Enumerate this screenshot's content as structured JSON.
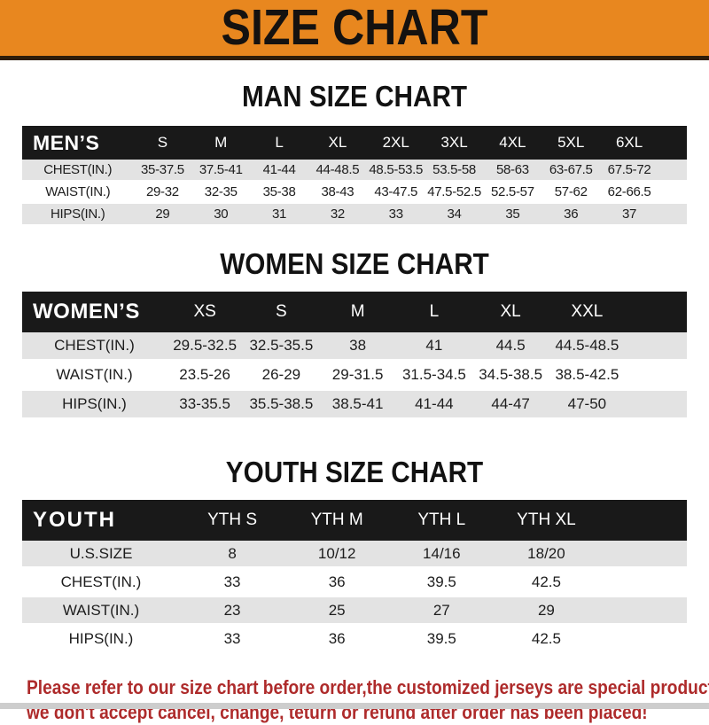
{
  "title": "SIZE CHART",
  "colors": {
    "accent_orange": "#E8871F",
    "header_bar_black": "#191919",
    "row_stripe_gray": "#E3E3E3",
    "note_red": "#AE2B2B"
  },
  "tables": {
    "men": {
      "heading": "MAN SIZE CHART",
      "header_label": "MEN’S",
      "columns": [
        "S",
        "M",
        "L",
        "XL",
        "2XL",
        "3XL",
        "4XL",
        "5XL",
        "6XL"
      ],
      "rows": [
        {
          "label": "CHEST(IN.)",
          "values": [
            "35-37.5",
            "37.5-41",
            "41-44",
            "44-48.5",
            "48.5-53.5",
            "53.5-58",
            "58-63",
            "63-67.5",
            "67.5-72"
          ]
        },
        {
          "label": "WAIST(IN.)",
          "values": [
            "29-32",
            "32-35",
            "35-38",
            "38-43",
            "43-47.5",
            "47.5-52.5",
            "52.5-57",
            "57-62",
            "62-66.5"
          ]
        },
        {
          "label": "HIPS(IN.)",
          "values": [
            "29",
            "30",
            "31",
            "32",
            "33",
            "34",
            "35",
            "36",
            "37"
          ]
        }
      ]
    },
    "women": {
      "heading": "WOMEN SIZE CHART",
      "header_label": "WOMEN’S",
      "columns": [
        "XS",
        "S",
        "M",
        "L",
        "XL",
        "XXL"
      ],
      "rows": [
        {
          "label": "CHEST(IN.)",
          "values": [
            "29.5-32.5",
            "32.5-35.5",
            "38",
            "41",
            "44.5",
            "44.5-48.5"
          ]
        },
        {
          "label": "WAIST(IN.)",
          "values": [
            "23.5-26",
            "26-29",
            "29-31.5",
            "31.5-34.5",
            "34.5-38.5",
            "38.5-42.5"
          ]
        },
        {
          "label": "HIPS(IN.)",
          "values": [
            "33-35.5",
            "35.5-38.5",
            "38.5-41",
            "41-44",
            "44-47",
            "47-50"
          ]
        }
      ]
    },
    "youth": {
      "heading": "YOUTH SIZE CHART",
      "header_label": "YOUTH",
      "columns": [
        "YTH S",
        "YTH M",
        "YTH L",
        "YTH XL"
      ],
      "rows": [
        {
          "label": "U.S.SIZE",
          "values": [
            "8",
            "10/12",
            "14/16",
            "18/20"
          ]
        },
        {
          "label": "CHEST(IN.)",
          "values": [
            "33",
            "36",
            "39.5",
            "42.5"
          ]
        },
        {
          "label": "WAIST(IN.)",
          "values": [
            "23",
            "25",
            "27",
            "29"
          ]
        },
        {
          "label": "HIPS(IN.)",
          "values": [
            "33",
            "36",
            "39.5",
            "42.5"
          ]
        }
      ]
    }
  },
  "footer": {
    "line1": "Please refer to our size chart before order,the customized jerseys are special products,",
    "line2": "we don't accept cancel, change, teturn or refund after order has been placed!"
  }
}
